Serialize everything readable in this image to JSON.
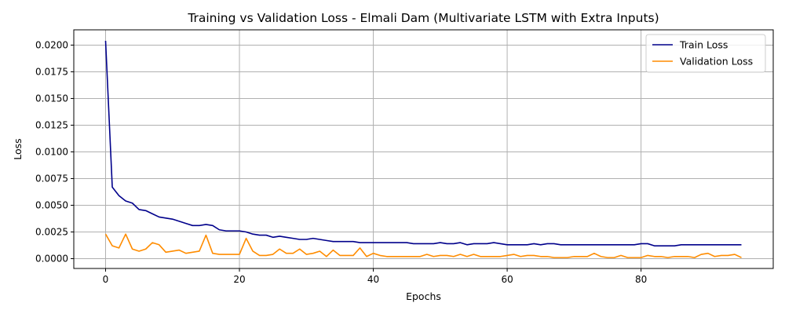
{
  "chart_data": {
    "type": "line",
    "title": "Training vs Validation Loss - Elmali Dam (Multivariate LSTM with Extra Inputs)",
    "xlabel": "Epochs",
    "ylabel": "Loss",
    "xlim": [
      -4.75,
      99.75
    ],
    "ylim": [
      -0.00092,
      0.02143
    ],
    "xticks": [
      0,
      20,
      40,
      60,
      80
    ],
    "yticks": [
      0.0,
      0.0025,
      0.005,
      0.0075,
      0.01,
      0.0125,
      0.015,
      0.0175,
      0.02
    ],
    "ytick_labels": [
      "0.0000",
      "0.0025",
      "0.0050",
      "0.0075",
      "0.0100",
      "0.0125",
      "0.0150",
      "0.0175",
      "0.0200"
    ],
    "grid": true,
    "legend_position": "top-right",
    "series": [
      {
        "name": "Train Loss",
        "color": "#00008b",
        "values": [
          0.0204,
          0.0067,
          0.0059,
          0.0054,
          0.0052,
          0.0046,
          0.0045,
          0.0042,
          0.0039,
          0.0038,
          0.0037,
          0.0035,
          0.0033,
          0.0031,
          0.0031,
          0.0032,
          0.0031,
          0.0027,
          0.0026,
          0.0026,
          0.0026,
          0.0025,
          0.0023,
          0.0022,
          0.0022,
          0.002,
          0.0021,
          0.002,
          0.0019,
          0.0018,
          0.0018,
          0.0019,
          0.0018,
          0.0017,
          0.0016,
          0.0016,
          0.0016,
          0.0016,
          0.0015,
          0.0015,
          0.0015,
          0.0015,
          0.0015,
          0.0015,
          0.0015,
          0.0015,
          0.0014,
          0.0014,
          0.0014,
          0.0014,
          0.0015,
          0.0014,
          0.0014,
          0.0015,
          0.0013,
          0.0014,
          0.0014,
          0.0014,
          0.0015,
          0.0014,
          0.0013,
          0.0013,
          0.0013,
          0.0013,
          0.0014,
          0.0013,
          0.0014,
          0.0014,
          0.0013,
          0.0013,
          0.0013,
          0.0013,
          0.0013,
          0.0013,
          0.0013,
          0.0013,
          0.0013,
          0.0013,
          0.0013,
          0.0013,
          0.0014,
          0.0014,
          0.0012,
          0.0012,
          0.0012,
          0.0012,
          0.0013,
          0.0013,
          0.0013,
          0.0013,
          0.0013,
          0.0013,
          0.0013,
          0.0013,
          0.0013,
          0.0013
        ]
      },
      {
        "name": "Validation Loss",
        "color": "#ff8c00",
        "values": [
          0.0023,
          0.0012,
          0.001,
          0.0023,
          0.0009,
          0.0007,
          0.0009,
          0.0015,
          0.0013,
          0.0006,
          0.0007,
          0.0008,
          0.0005,
          0.0006,
          0.0007,
          0.0022,
          0.0005,
          0.0004,
          0.0004,
          0.0004,
          0.0004,
          0.0019,
          0.0007,
          0.0003,
          0.0003,
          0.0004,
          0.0009,
          0.0005,
          0.0005,
          0.0009,
          0.0004,
          0.0005,
          0.0007,
          0.0002,
          0.0008,
          0.0003,
          0.0003,
          0.0003,
          0.001,
          0.0002,
          0.0005,
          0.0003,
          0.0002,
          0.0002,
          0.0002,
          0.0002,
          0.0002,
          0.0002,
          0.0004,
          0.0002,
          0.0003,
          0.0003,
          0.0002,
          0.0004,
          0.0002,
          0.0004,
          0.0002,
          0.0002,
          0.0002,
          0.0002,
          0.0003,
          0.0004,
          0.0002,
          0.0003,
          0.0003,
          0.0002,
          0.0002,
          0.0001,
          0.0001,
          0.0001,
          0.0002,
          0.0002,
          0.0002,
          0.0005,
          0.0002,
          0.0001,
          0.0001,
          0.0003,
          0.0001,
          0.0001,
          0.0001,
          0.0003,
          0.0002,
          0.0002,
          0.0001,
          0.0002,
          0.0002,
          0.0002,
          0.0001,
          0.0004,
          0.0005,
          0.0002,
          0.0003,
          0.0003,
          0.0004,
          0.0001
        ]
      }
    ]
  }
}
